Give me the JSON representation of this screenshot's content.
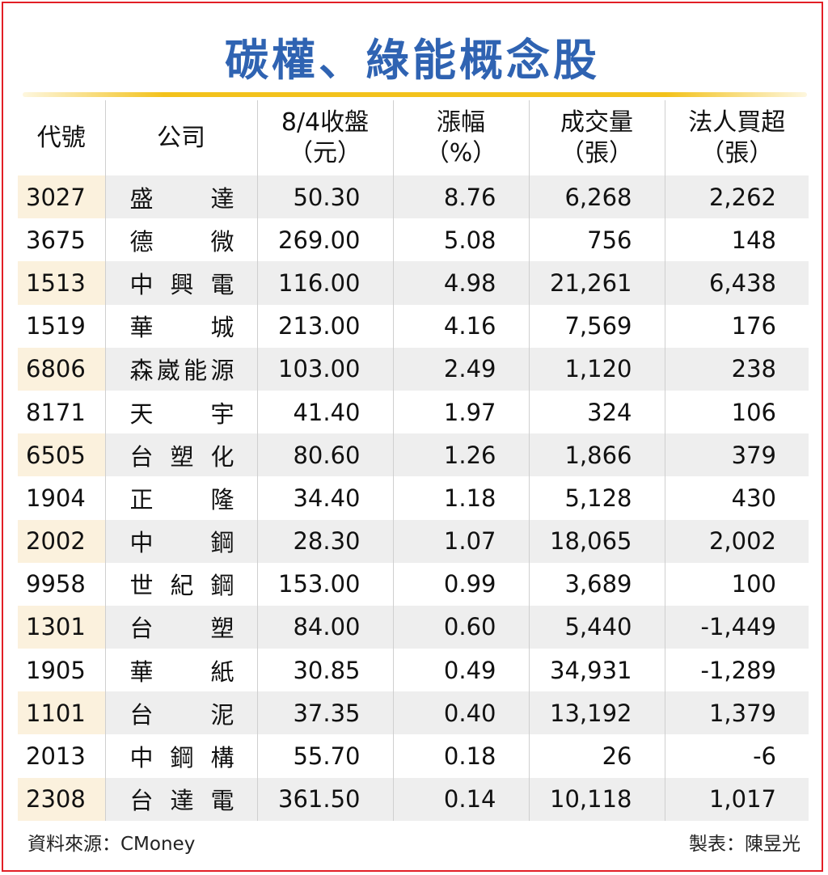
{
  "title": "碳權、綠能概念股",
  "headers": {
    "code": "代號",
    "company": "公司",
    "close_line1": "8/4收盤",
    "close_line2": "（元）",
    "change_line1": "漲幅",
    "change_line2": "（%）",
    "volume_line1": "成交量",
    "volume_line2": "（張）",
    "inst_line1": "法人買超",
    "inst_line2": "（張）"
  },
  "rows": [
    {
      "code": "3027",
      "name": "盛　達",
      "close": "50.30",
      "change": "8.76",
      "volume": "6,268",
      "inst": "2,262"
    },
    {
      "code": "3675",
      "name": "德　微",
      "close": "269.00",
      "change": "5.08",
      "volume": "756",
      "inst": "148"
    },
    {
      "code": "1513",
      "name": "中興電",
      "close": "116.00",
      "change": "4.98",
      "volume": "21,261",
      "inst": "6,438"
    },
    {
      "code": "1519",
      "name": "華　城",
      "close": "213.00",
      "change": "4.16",
      "volume": "7,569",
      "inst": "176"
    },
    {
      "code": "6806",
      "name": "森崴能源",
      "close": "103.00",
      "change": "2.49",
      "volume": "1,120",
      "inst": "238"
    },
    {
      "code": "8171",
      "name": "天　宇",
      "close": "41.40",
      "change": "1.97",
      "volume": "324",
      "inst": "106"
    },
    {
      "code": "6505",
      "name": "台塑化",
      "close": "80.60",
      "change": "1.26",
      "volume": "1,866",
      "inst": "379"
    },
    {
      "code": "1904",
      "name": "正　隆",
      "close": "34.40",
      "change": "1.18",
      "volume": "5,128",
      "inst": "430"
    },
    {
      "code": "2002",
      "name": "中　鋼",
      "close": "28.30",
      "change": "1.07",
      "volume": "18,065",
      "inst": "2,002"
    },
    {
      "code": "9958",
      "name": "世紀鋼",
      "close": "153.00",
      "change": "0.99",
      "volume": "3,689",
      "inst": "100"
    },
    {
      "code": "1301",
      "name": "台　塑",
      "close": "84.00",
      "change": "0.60",
      "volume": "5,440",
      "inst": "-1,449"
    },
    {
      "code": "1905",
      "name": "華　紙",
      "close": "30.85",
      "change": "0.49",
      "volume": "34,931",
      "inst": "-1,289"
    },
    {
      "code": "1101",
      "name": "台　泥",
      "close": "37.35",
      "change": "0.40",
      "volume": "13,192",
      "inst": "1,379"
    },
    {
      "code": "2013",
      "name": "中鋼構",
      "close": "55.70",
      "change": "0.18",
      "volume": "26",
      "inst": "-6"
    },
    {
      "code": "2308",
      "name": "台達電",
      "close": "361.50",
      "change": "0.14",
      "volume": "10,118",
      "inst": "1,017"
    }
  ],
  "footer": {
    "source": "資料來源：CMoney",
    "credit": "製表：陳昱光"
  },
  "colors": {
    "title": "#2f63b2",
    "rule": "#f3c21b",
    "border": "#e21f26",
    "row_shade": "#eeeeee",
    "code_shade": "#fbf1dd"
  }
}
